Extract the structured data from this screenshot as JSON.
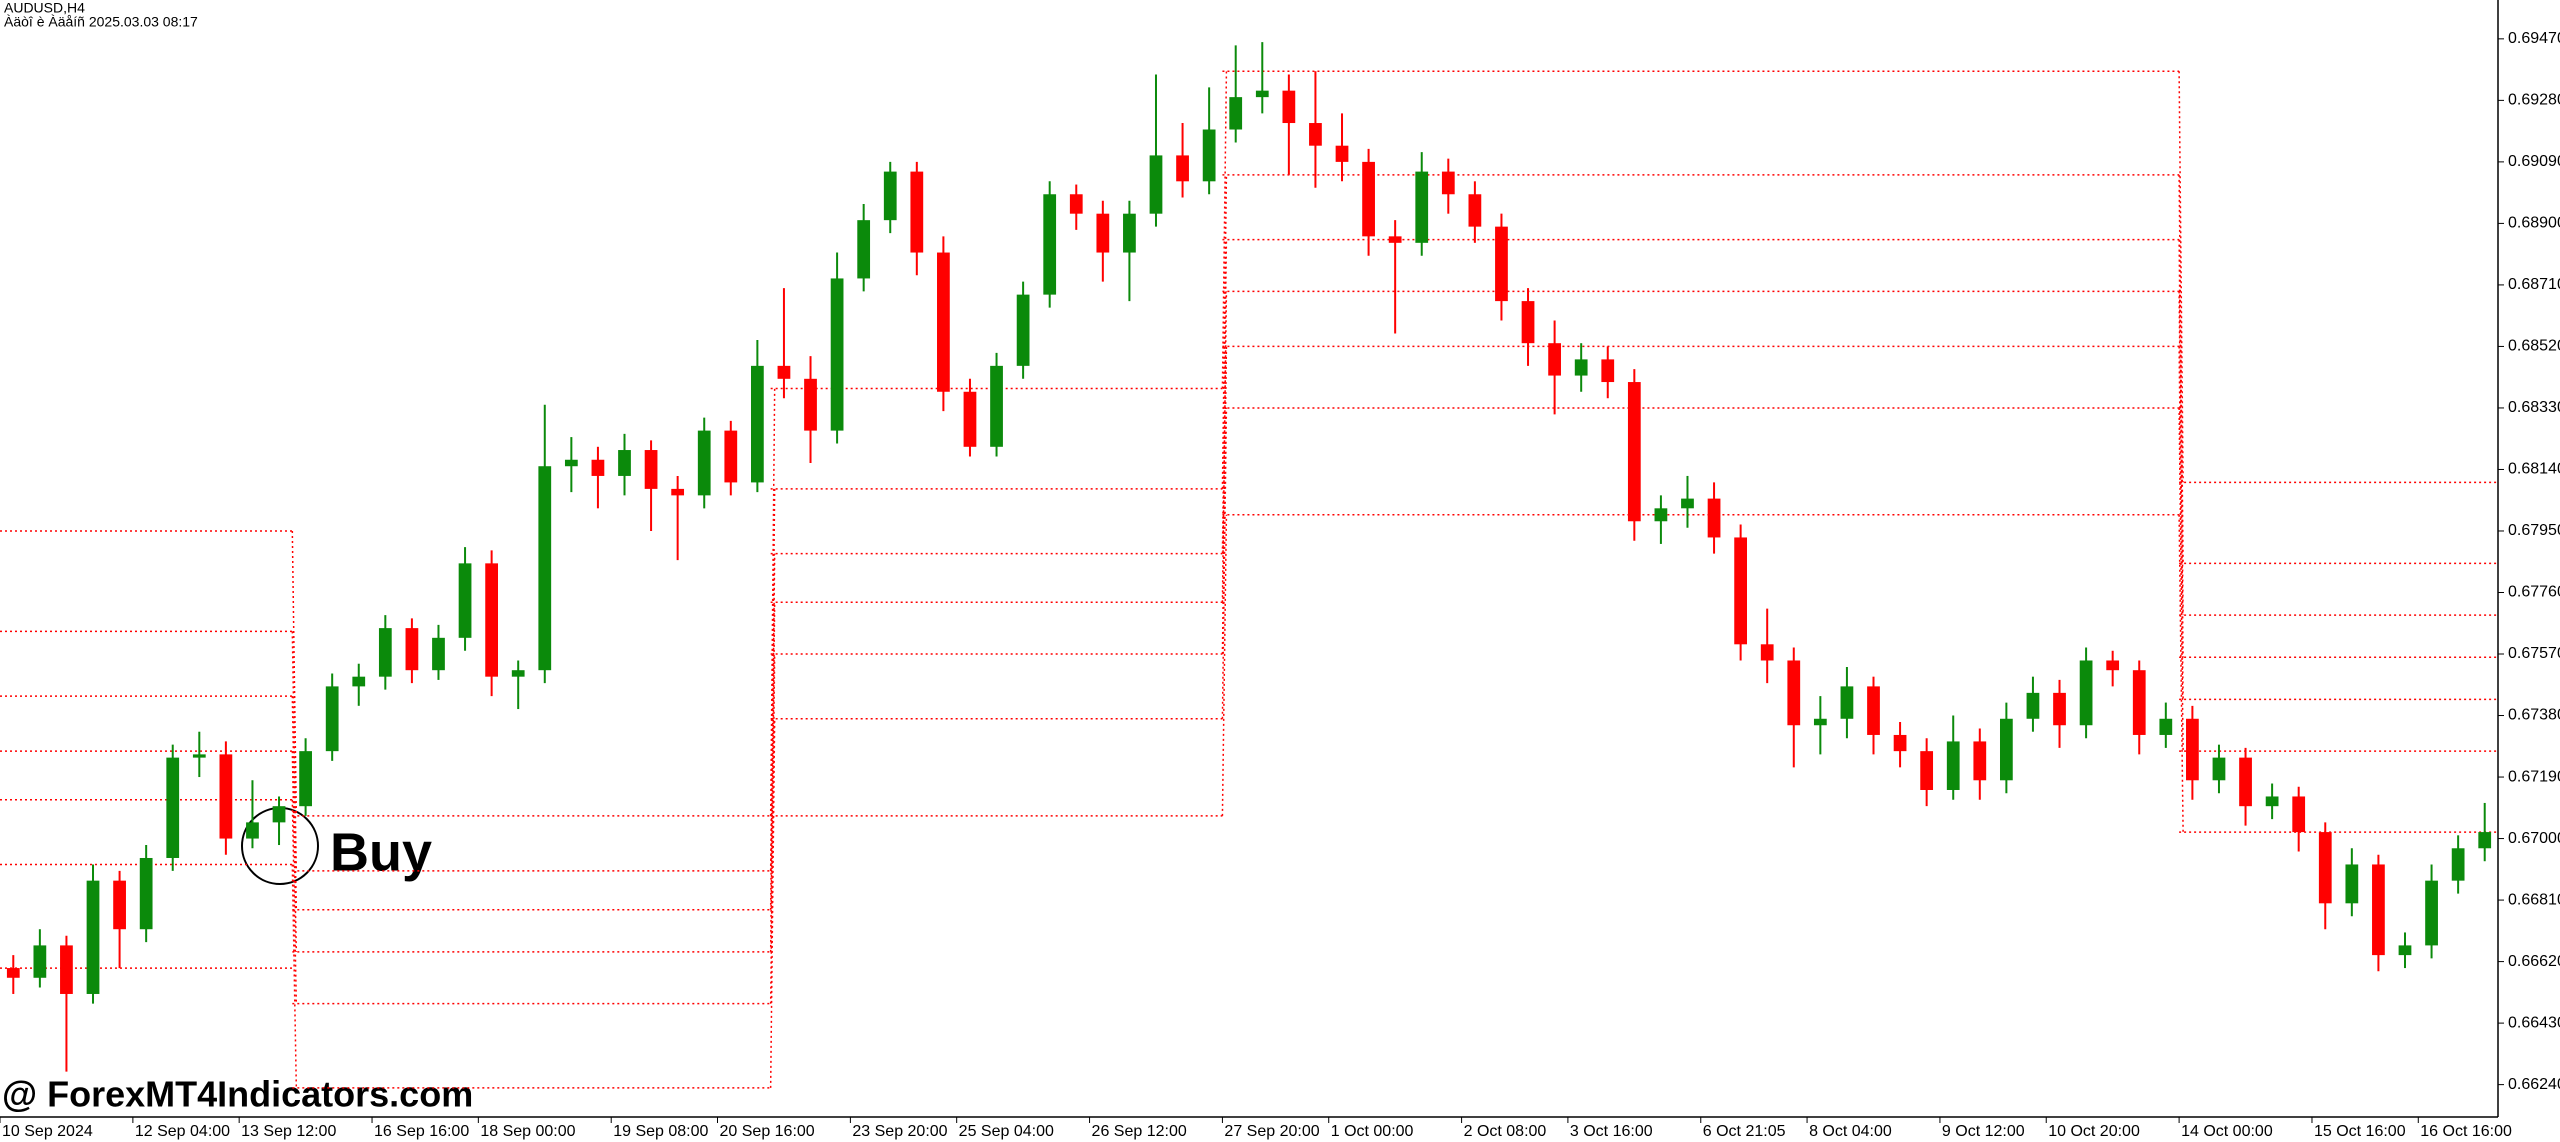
{
  "chart_data": {
    "type": "candlestick",
    "symbol": "AUDUSD,H4",
    "subtitle": "Àäòî è Àäåíñ 2025.03.03 08:17",
    "watermark": "@ ForexMT4Indicators.com",
    "annotation": "Buy",
    "up_color": "#0b8a0b",
    "down_color": "#ff0000",
    "level_color": "#ff0000",
    "ylim": [
      0.6614,
      0.6959
    ],
    "yticks": [
      {
        "value": 0.6947,
        "label": "0.69470"
      },
      {
        "value": 0.6928,
        "label": "0.69280"
      },
      {
        "value": 0.6909,
        "label": "0.69090"
      },
      {
        "value": 0.689,
        "label": "0.68900"
      },
      {
        "value": 0.6871,
        "label": "0.68710"
      },
      {
        "value": 0.6852,
        "label": "0.68520"
      },
      {
        "value": 0.6833,
        "label": "0.68330"
      },
      {
        "value": 0.6814,
        "label": "0.68140"
      },
      {
        "value": 0.6795,
        "label": "0.67950"
      },
      {
        "value": 0.6776,
        "label": "0.67760"
      },
      {
        "value": 0.6757,
        "label": "0.67570"
      },
      {
        "value": 0.6738,
        "label": "0.67380"
      },
      {
        "value": 0.6719,
        "label": "0.67190"
      },
      {
        "value": 0.67,
        "label": "0.67000"
      },
      {
        "value": 0.6681,
        "label": "0.66810"
      },
      {
        "value": 0.6662,
        "label": "0.66620"
      },
      {
        "value": 0.6643,
        "label": "0.66430"
      },
      {
        "value": 0.6624,
        "label": "0.66240"
      }
    ],
    "categories": [
      "10 Sep 2024",
      null,
      null,
      null,
      null,
      "12 Sep 04:00",
      null,
      null,
      null,
      "13 Sep 12:00",
      null,
      null,
      null,
      null,
      "16 Sep 16:00",
      null,
      null,
      null,
      "18 Sep 00:00",
      null,
      null,
      null,
      null,
      "19 Sep 08:00",
      null,
      null,
      null,
      "20 Sep 16:00",
      null,
      null,
      null,
      null,
      "23 Sep 20:00",
      null,
      null,
      null,
      "25 Sep 04:00",
      null,
      null,
      null,
      null,
      "26 Sep 12:00",
      null,
      null,
      null,
      null,
      "27 Sep 20:00",
      null,
      null,
      null,
      "1 Oct 00:00",
      null,
      null,
      null,
      null,
      "2 Oct 08:00",
      null,
      null,
      null,
      "3 Oct 16:00",
      null,
      null,
      null,
      null,
      "6 Oct 21:05",
      null,
      null,
      null,
      "8 Oct 04:00",
      null,
      null,
      null,
      null,
      "9 Oct 12:00",
      null,
      null,
      null,
      "10 Oct 20:00",
      null,
      null,
      null,
      null,
      "14 Oct 00:00",
      null,
      null,
      null,
      null,
      "15 Oct 16:00",
      null,
      null,
      null,
      "16 Oct 16:00",
      null,
      null
    ],
    "ohlc": [
      [
        0.666,
        0.6664,
        0.6652,
        0.6657
      ],
      [
        0.6657,
        0.6672,
        0.6654,
        0.6667
      ],
      [
        0.6667,
        0.667,
        0.6628,
        0.6652
      ],
      [
        0.6652,
        0.6692,
        0.6649,
        0.6687
      ],
      [
        0.6687,
        0.669,
        0.666,
        0.6672
      ],
      [
        0.6672,
        0.6698,
        0.6668,
        0.6694
      ],
      [
        0.6694,
        0.6729,
        0.669,
        0.6725
      ],
      [
        0.6725,
        0.6733,
        0.6719,
        0.6726
      ],
      [
        0.6726,
        0.673,
        0.6695,
        0.67
      ],
      [
        0.67,
        0.6718,
        0.6697,
        0.6705
      ],
      [
        0.6705,
        0.6713,
        0.6698,
        0.671
      ],
      [
        0.671,
        0.6731,
        0.6707,
        0.6727
      ],
      [
        0.6727,
        0.6751,
        0.6724,
        0.6747
      ],
      [
        0.6747,
        0.6754,
        0.6741,
        0.675
      ],
      [
        0.675,
        0.6769,
        0.6746,
        0.6765
      ],
      [
        0.6765,
        0.6768,
        0.6748,
        0.6752
      ],
      [
        0.6752,
        0.6766,
        0.6749,
        0.6762
      ],
      [
        0.6762,
        0.679,
        0.6758,
        0.6785
      ],
      [
        0.6785,
        0.6789,
        0.6744,
        0.675
      ],
      [
        0.675,
        0.6755,
        0.674,
        0.6752
      ],
      [
        0.6752,
        0.6834,
        0.6748,
        0.6815
      ],
      [
        0.6815,
        0.6824,
        0.6807,
        0.6817
      ],
      [
        0.6817,
        0.6821,
        0.6802,
        0.6812
      ],
      [
        0.6812,
        0.6825,
        0.6806,
        0.682
      ],
      [
        0.682,
        0.6823,
        0.6795,
        0.6808
      ],
      [
        0.6808,
        0.6812,
        0.6786,
        0.6806
      ],
      [
        0.6806,
        0.683,
        0.6802,
        0.6826
      ],
      [
        0.6826,
        0.6829,
        0.6806,
        0.681
      ],
      [
        0.681,
        0.6854,
        0.6807,
        0.6846
      ],
      [
        0.6846,
        0.687,
        0.6836,
        0.6842
      ],
      [
        0.6842,
        0.6849,
        0.6816,
        0.6826
      ],
      [
        0.6826,
        0.6881,
        0.6822,
        0.6873
      ],
      [
        0.6873,
        0.6896,
        0.6869,
        0.6891
      ],
      [
        0.6891,
        0.6909,
        0.6887,
        0.6906
      ],
      [
        0.6906,
        0.6909,
        0.6874,
        0.6881
      ],
      [
        0.6881,
        0.6886,
        0.6832,
        0.6838
      ],
      [
        0.6838,
        0.6842,
        0.6818,
        0.6821
      ],
      [
        0.6821,
        0.685,
        0.6818,
        0.6846
      ],
      [
        0.6846,
        0.6872,
        0.6842,
        0.6868
      ],
      [
        0.6868,
        0.6903,
        0.6864,
        0.6899
      ],
      [
        0.6899,
        0.6902,
        0.6888,
        0.6893
      ],
      [
        0.6893,
        0.6897,
        0.6872,
        0.6881
      ],
      [
        0.6881,
        0.6897,
        0.6866,
        0.6893
      ],
      [
        0.6893,
        0.6936,
        0.6889,
        0.6911
      ],
      [
        0.6911,
        0.6921,
        0.6898,
        0.6903
      ],
      [
        0.6903,
        0.6932,
        0.6899,
        0.6919
      ],
      [
        0.6919,
        0.6945,
        0.6915,
        0.6929
      ],
      [
        0.6929,
        0.6946,
        0.6924,
        0.6931
      ],
      [
        0.6931,
        0.6936,
        0.6905,
        0.6921
      ],
      [
        0.6921,
        0.6937,
        0.6901,
        0.6914
      ],
      [
        0.6914,
        0.6924,
        0.6903,
        0.6909
      ],
      [
        0.6909,
        0.6913,
        0.688,
        0.6886
      ],
      [
        0.6886,
        0.6891,
        0.6856,
        0.6884
      ],
      [
        0.6884,
        0.6912,
        0.688,
        0.6906
      ],
      [
        0.6906,
        0.691,
        0.6893,
        0.6899
      ],
      [
        0.6899,
        0.6903,
        0.6884,
        0.6889
      ],
      [
        0.6889,
        0.6893,
        0.686,
        0.6866
      ],
      [
        0.6866,
        0.687,
        0.6846,
        0.6853
      ],
      [
        0.6853,
        0.686,
        0.6831,
        0.6843
      ],
      [
        0.6843,
        0.6853,
        0.6838,
        0.6848
      ],
      [
        0.6848,
        0.6852,
        0.6836,
        0.6841
      ],
      [
        0.6841,
        0.6845,
        0.6792,
        0.6798
      ],
      [
        0.6798,
        0.6806,
        0.6791,
        0.6802
      ],
      [
        0.6802,
        0.6812,
        0.6796,
        0.6805
      ],
      [
        0.6805,
        0.681,
        0.6788,
        0.6793
      ],
      [
        0.6793,
        0.6797,
        0.6755,
        0.676
      ],
      [
        0.676,
        0.6771,
        0.6748,
        0.6755
      ],
      [
        0.6755,
        0.6759,
        0.6722,
        0.6735
      ],
      [
        0.6735,
        0.6744,
        0.6726,
        0.6737
      ],
      [
        0.6737,
        0.6753,
        0.6731,
        0.6747
      ],
      [
        0.6747,
        0.675,
        0.6726,
        0.6732
      ],
      [
        0.6732,
        0.6736,
        0.6722,
        0.6727
      ],
      [
        0.6727,
        0.6731,
        0.671,
        0.6715
      ],
      [
        0.6715,
        0.6738,
        0.6712,
        0.673
      ],
      [
        0.673,
        0.6734,
        0.6712,
        0.6718
      ],
      [
        0.6718,
        0.6742,
        0.6714,
        0.6737
      ],
      [
        0.6737,
        0.675,
        0.6733,
        0.6745
      ],
      [
        0.6745,
        0.6749,
        0.6728,
        0.6735
      ],
      [
        0.6735,
        0.6759,
        0.6731,
        0.6755
      ],
      [
        0.6755,
        0.6758,
        0.6747,
        0.6752
      ],
      [
        0.6752,
        0.6755,
        0.6726,
        0.6732
      ],
      [
        0.6732,
        0.6742,
        0.6728,
        0.6737
      ],
      [
        0.6737,
        0.6741,
        0.6712,
        0.6718
      ],
      [
        0.6718,
        0.6729,
        0.6714,
        0.6725
      ],
      [
        0.6725,
        0.6728,
        0.6704,
        0.671
      ],
      [
        0.671,
        0.6717,
        0.6706,
        0.6713
      ],
      [
        0.6713,
        0.6716,
        0.6696,
        0.6702
      ],
      [
        0.6702,
        0.6705,
        0.6672,
        0.668
      ],
      [
        0.668,
        0.6697,
        0.6676,
        0.6692
      ],
      [
        0.6692,
        0.6695,
        0.6659,
        0.6664
      ],
      [
        0.6664,
        0.6671,
        0.666,
        0.6667
      ],
      [
        0.6667,
        0.6692,
        0.6663,
        0.6687
      ],
      [
        0.6687,
        0.6701,
        0.6683,
        0.6697
      ],
      [
        0.6697,
        0.6711,
        0.6693,
        0.6702
      ]
    ],
    "levels": [
      {
        "from": 0,
        "to": 10,
        "values": [
          0.6795,
          0.6764,
          0.6744,
          0.6727,
          0.6712,
          0.6692,
          0.666
        ]
      },
      {
        "from": 11,
        "to": 28,
        "values": [
          0.6707,
          0.669,
          0.6678,
          0.6665,
          0.6649,
          0.6623
        ]
      },
      {
        "from": 29,
        "to": 45,
        "values": [
          0.6839,
          0.6808,
          0.6788,
          0.6773,
          0.6757,
          0.6737,
          0.6707
        ]
      },
      {
        "from": 46,
        "to": 81,
        "values": [
          0.6937,
          0.6905,
          0.6885,
          0.6869,
          0.6852,
          0.6833,
          0.68
        ]
      },
      {
        "from": 82,
        "to": 93,
        "values": [
          0.681,
          0.6785,
          0.6769,
          0.6756,
          0.6743,
          0.6727,
          0.6702
        ]
      }
    ]
  }
}
